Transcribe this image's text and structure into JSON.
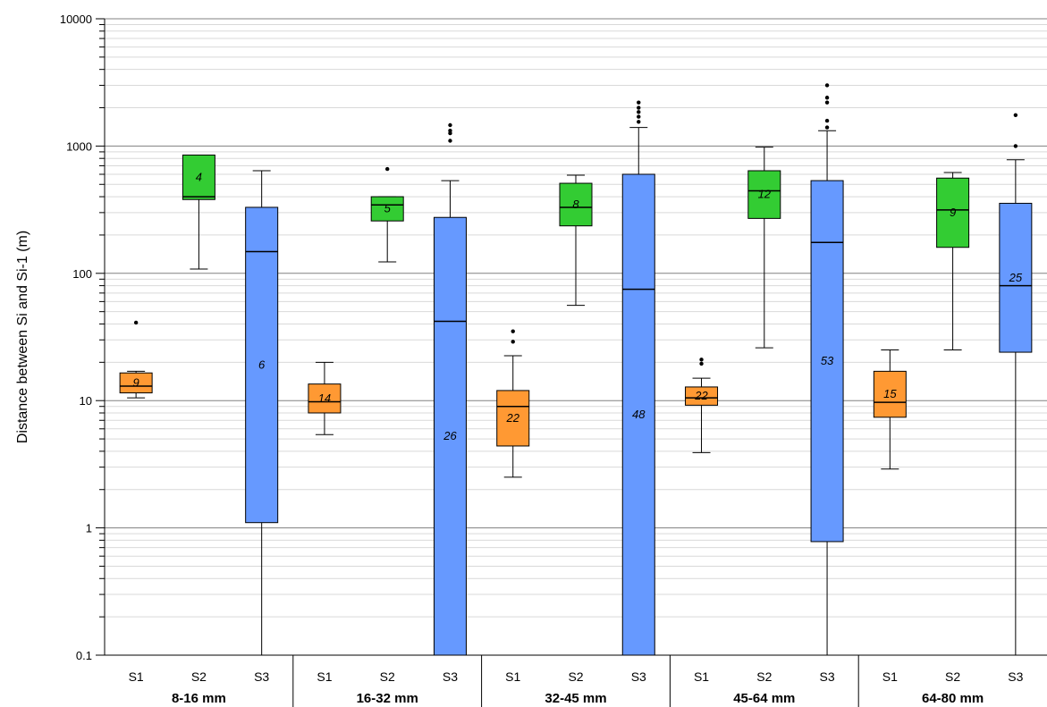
{
  "chart_data": {
    "type": "box",
    "ylabel": "Distance between Si and Si-1 (m)",
    "yscale": "log",
    "ylim": [
      0.1,
      10000
    ],
    "yticks": [
      "0.1",
      "1",
      "10",
      "100",
      "1000",
      "10000"
    ],
    "grid": true,
    "colors": {
      "S1": "#FF9933",
      "S2": "#33CC33",
      "S3": "#6699FF"
    },
    "groups": [
      {
        "name": "8-16 mm",
        "boxes": [
          {
            "label": "S1",
            "min": 10.5,
            "q1": 11.5,
            "median": 13,
            "q3": 16.5,
            "max": 17,
            "n": "9",
            "outliers": [
              41
            ]
          },
          {
            "label": "S2",
            "min": 108,
            "q1": 380,
            "median": 400,
            "q3": 850,
            "max": 850,
            "n": "4",
            "outliers": []
          },
          {
            "label": "S3",
            "min": 0.1,
            "q1": 1.1,
            "median": 148,
            "q3": 330,
            "max": 640,
            "n": "6",
            "outliers": []
          }
        ]
      },
      {
        "name": "16-32 mm",
        "boxes": [
          {
            "label": "S1",
            "min": 5.4,
            "q1": 8,
            "median": 9.8,
            "q3": 13.5,
            "max": 20,
            "n": "14",
            "outliers": []
          },
          {
            "label": "S2",
            "min": 123,
            "q1": 258,
            "median": 345,
            "q3": 400,
            "max": 400,
            "n": "5",
            "outliers": [
              660
            ]
          },
          {
            "label": "S3",
            "min": 0.1,
            "q1": 0.1,
            "median": 42,
            "q3": 275,
            "max": 535,
            "n": "26",
            "outliers": [
              1100,
              1260,
              1320,
              1460
            ]
          }
        ]
      },
      {
        "name": "32-45 mm",
        "boxes": [
          {
            "label": "S1",
            "min": 2.5,
            "q1": 4.4,
            "median": 9,
            "q3": 12,
            "max": 22.5,
            "n": "22",
            "outliers": [
              29,
              35
            ]
          },
          {
            "label": "S2",
            "min": 56,
            "q1": 236,
            "median": 330,
            "q3": 510,
            "max": 590,
            "n": "8",
            "outliers": []
          },
          {
            "label": "S3",
            "min": 0.1,
            "q1": 0.1,
            "median": 75,
            "q3": 600,
            "max": 1400,
            "n": "48",
            "outliers": [
              1550,
              1700,
              1850,
              2000,
              2200
            ]
          }
        ]
      },
      {
        "name": "45-64 mm",
        "boxes": [
          {
            "label": "S1",
            "min": 3.9,
            "q1": 9.2,
            "median": 10.5,
            "q3": 12.8,
            "max": 15,
            "n": "22",
            "outliers": [
              19.5,
              21
            ]
          },
          {
            "label": "S2",
            "min": 26,
            "q1": 270,
            "median": 445,
            "q3": 640,
            "max": 980,
            "n": "12",
            "outliers": []
          },
          {
            "label": "S3",
            "min": 0.1,
            "q1": 0.78,
            "median": 175,
            "q3": 535,
            "max": 1320,
            "n": "53",
            "outliers": [
              1400,
              1580,
              2200,
              2400,
              3000
            ]
          }
        ]
      },
      {
        "name": "64-80 mm",
        "boxes": [
          {
            "label": "S1",
            "min": 2.9,
            "q1": 7.4,
            "median": 9.7,
            "q3": 17,
            "max": 25,
            "n": "15",
            "outliers": []
          },
          {
            "label": "S2",
            "min": 25,
            "q1": 160,
            "median": 315,
            "q3": 560,
            "max": 620,
            "n": "9",
            "outliers": []
          },
          {
            "label": "S3",
            "min": 0.1,
            "q1": 24,
            "median": 80,
            "q3": 355,
            "max": 780,
            "n": "25",
            "outliers": [
              1000,
              1750
            ]
          }
        ]
      }
    ]
  }
}
